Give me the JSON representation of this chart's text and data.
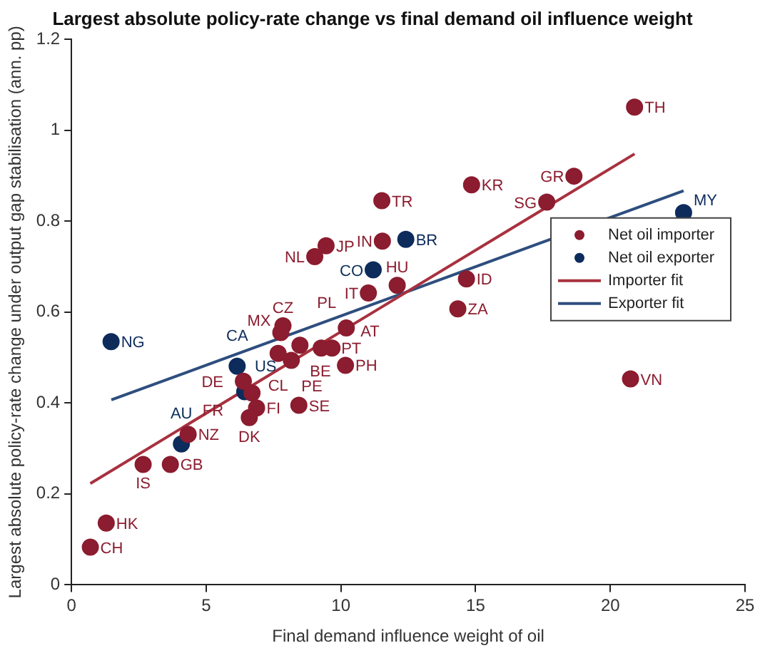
{
  "chart_data": {
    "type": "scatter",
    "title": "Largest absolute policy-rate change vs final demand oil influence weight",
    "xlabel": "Final demand influence weight of oil",
    "ylabel": "Largest absolute policy-rate change under output gap stabilisation (ann. pp)",
    "xlim": [
      0,
      25
    ],
    "xticks": [
      0,
      5,
      10,
      15,
      20,
      25
    ],
    "ylim": [
      0,
      1.2
    ],
    "yticks": [
      0,
      0.2,
      0.4,
      0.6,
      0.8,
      1,
      1.2
    ],
    "grid": false,
    "legend": "right",
    "marker": "circle",
    "series": [
      {
        "name": "Net oil importer",
        "type": "scatter",
        "color": "#8c1c2f",
        "x": [
          20.9,
          14.85,
          18.65,
          17.64,
          11.52,
          11.54,
          9.45,
          9.03,
          14.66,
          11.02,
          12.09,
          14.34,
          7.85,
          7.77,
          8.48,
          9.27,
          9.67,
          7.67,
          8.16,
          10.17,
          10.2,
          6.38,
          6.7,
          8.44,
          6.87,
          6.6,
          4.33,
          2.66,
          3.67,
          1.29,
          0.7,
          20.75
        ],
        "values": [
          1.051,
          0.88,
          0.899,
          0.842,
          0.845,
          0.756,
          0.746,
          0.722,
          0.673,
          0.642,
          0.659,
          0.607,
          0.57,
          0.555,
          0.527,
          0.521,
          0.521,
          0.509,
          0.494,
          0.483,
          0.565,
          0.448,
          0.422,
          0.395,
          0.389,
          0.368,
          0.331,
          0.265,
          0.265,
          0.136,
          0.083,
          0.453
        ]
      },
      {
        "name": "Net oil exporter",
        "type": "scatter",
        "color": "#0d2c5c",
        "x": [
          22.72,
          12.41,
          11.2,
          1.47,
          6.15,
          6.43,
          4.08
        ],
        "values": [
          0.819,
          0.76,
          0.693,
          0.535,
          0.481,
          0.425,
          0.31
        ]
      },
      {
        "name": "Importer fit",
        "type": "line",
        "color": "#a8313f",
        "marker": "none",
        "line_style": "solid",
        "x": [
          0.7,
          20.9
        ],
        "values": [
          0.223,
          0.948
        ]
      },
      {
        "name": "Exporter fit",
        "type": "line",
        "color": "#2e4e7e",
        "marker": "none",
        "line_style": "solid",
        "x": [
          1.48,
          22.72
        ],
        "values": [
          0.407,
          0.867
        ]
      }
    ],
    "annotations": [
      {
        "text": "TH",
        "x": 20.9,
        "y": 1.051
      },
      {
        "text": "KR",
        "x": 14.85,
        "y": 0.88
      },
      {
        "text": "GR",
        "x": 18.65,
        "y": 0.899
      },
      {
        "text": "SG",
        "x": 17.64,
        "y": 0.842
      },
      {
        "text": "TR",
        "x": 11.52,
        "y": 0.845
      },
      {
        "text": "IN",
        "x": 11.54,
        "y": 0.756
      },
      {
        "text": "JP",
        "x": 9.45,
        "y": 0.746
      },
      {
        "text": "NL",
        "x": 9.03,
        "y": 0.722
      },
      {
        "text": "ID",
        "x": 14.66,
        "y": 0.673
      },
      {
        "text": "IT",
        "x": 11.02,
        "y": 0.642
      },
      {
        "text": "HU",
        "x": 12.09,
        "y": 0.659
      },
      {
        "text": "ZA",
        "x": 14.34,
        "y": 0.607
      },
      {
        "text": "CZ",
        "x": 7.85,
        "y": 0.57
      },
      {
        "text": "MX",
        "x": 7.77,
        "y": 0.555
      },
      {
        "text": "BE",
        "x": 8.48,
        "y": 0.527
      },
      {
        "text": "PT",
        "x": 9.27,
        "y": 0.521
      },
      {
        "text": "AT",
        "x": 9.67,
        "y": 0.521
      },
      {
        "text": "CL",
        "x": 7.67,
        "y": 0.509
      },
      {
        "text": "PE",
        "x": 8.16,
        "y": 0.494
      },
      {
        "text": "PH",
        "x": 10.17,
        "y": 0.483
      },
      {
        "text": "PL",
        "x": 10.2,
        "y": 0.565
      },
      {
        "text": "DE",
        "x": 6.38,
        "y": 0.448
      },
      {
        "text": "FR",
        "x": 6.7,
        "y": 0.422
      },
      {
        "text": "SE",
        "x": 8.44,
        "y": 0.395
      },
      {
        "text": "FI",
        "x": 6.87,
        "y": 0.389
      },
      {
        "text": "DK",
        "x": 6.6,
        "y": 0.368
      },
      {
        "text": "NZ",
        "x": 4.33,
        "y": 0.331
      },
      {
        "text": "IS",
        "x": 2.66,
        "y": 0.265
      },
      {
        "text": "GB",
        "x": 3.67,
        "y": 0.265
      },
      {
        "text": "HK",
        "x": 1.29,
        "y": 0.136
      },
      {
        "text": "CH",
        "x": 0.7,
        "y": 0.083
      },
      {
        "text": "VN",
        "x": 20.75,
        "y": 0.453
      },
      {
        "text": "MY",
        "x": 22.72,
        "y": 0.819
      },
      {
        "text": "BR",
        "x": 12.41,
        "y": 0.76
      },
      {
        "text": "CO",
        "x": 11.2,
        "y": 0.693
      },
      {
        "text": "NG",
        "x": 1.47,
        "y": 0.535
      },
      {
        "text": "CA",
        "x": 6.15,
        "y": 0.481
      },
      {
        "text": "US",
        "x": 6.43,
        "y": 0.425
      },
      {
        "text": "AU",
        "x": 4.08,
        "y": 0.31
      }
    ]
  }
}
